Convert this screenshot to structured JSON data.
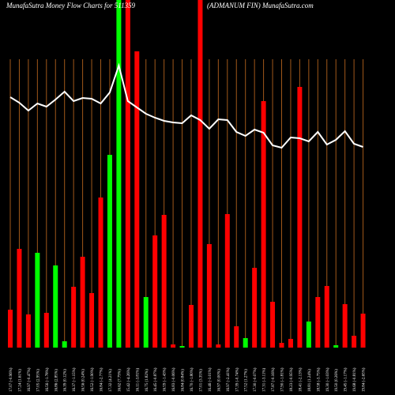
{
  "chart_data": {
    "type": "bar",
    "title": "MunafaSutra  Money Flow  Charts for 511359",
    "subtitle": "(ADMANUM FIN) MunafaSutra.com",
    "categories": [
      "17.07 (-0.96%)",
      "17.24 (1.61%)",
      "16.97 (-0.47%)",
      "17.05 (2.95%)",
      "16.56 (-1.78%)",
      "16.86 (2.85%)",
      "16.39 (0.12%)",
      "16.37 (-1.15%)",
      "16.56 (0.24%)",
      "16.52 (-1.90%)",
      "16.84 (-2.77%)",
      "17.32 (4.21%)",
      "16.62 (7.79%)",
      "15.42 (-4.26%)",
      "16.11 (-3.81%)",
      "16.75 (1.82%)",
      "16.45 (-0.87%)",
      "16.59 (-1.43%)",
      "16.83 (-0.06%)",
      "16.84 (0.84%)",
      "16.70 (-1.80%)",
      "17.01 (3.35%)",
      "16.46 (-3.01%)",
      "16.97 (0.00%)",
      "16.97 (-2.41%)",
      "17.39 (-0.74%)",
      "17.52 (1.27%)",
      "17.30 (-0.07%)",
      "17.31 (-3.11%)",
      "17.87 (-0.16%)",
      "17.90 (-1.81%)",
      "18.23 (-0.95%)",
      "18.41 (-2.13%)",
      "18.81 (1.24%)",
      "18.58 (-3.75%)",
      "19.30 (-1.03%)",
      "19.50 (0.26%)",
      "19.45 (-1.17%)",
      "19.68 (-0.81%)",
      "19.84 (-2.65%)"
    ],
    "series": [
      {
        "name": "Money Flow",
        "colors": [
          "#ff0000",
          "#ff0000",
          "#ff0000",
          "#00ff00",
          "#ff0000",
          "#00ff00",
          "#00ff00",
          "#ff0000",
          "#ff0000",
          "#ff0000",
          "#ff0000",
          "#00ff00",
          "#00ff00",
          "#ff0000",
          "#ff0000",
          "#00ff00",
          "#ff0000",
          "#ff0000",
          "#ff0000",
          "#00ff00",
          "#ff0000",
          "#ff0000",
          "#ff0000",
          "#ff0000",
          "#ff0000",
          "#ff0000",
          "#00ff00",
          "#ff0000",
          "#ff0000",
          "#ff0000",
          "#ff0000",
          "#ff0000",
          "#ff0000",
          "#00ff00",
          "#ff0000",
          "#ff0000",
          "#00ff00",
          "#ff0000",
          "#ff0000",
          "#ff0000"
        ],
        "values": [
          48,
          125,
          42,
          120,
          44,
          104,
          8,
          77,
          115,
          69,
          190,
          244,
          460,
          460,
          375,
          64,
          142,
          168,
          4,
          2,
          54,
          460,
          131,
          4,
          169,
          27,
          12,
          101,
          312,
          58,
          6,
          11,
          330,
          33,
          64,
          78,
          3,
          55,
          15,
          43
        ]
      },
      {
        "name": "Price",
        "color": "#ffffff",
        "values": [
          317,
          310,
          300,
          309,
          305,
          314,
          324,
          312,
          316,
          315,
          309,
          323,
          357,
          312,
          304,
          296,
          291,
          287,
          285,
          284,
          294,
          288,
          277,
          289,
          288,
          273,
          268,
          276,
          272,
          256,
          253,
          266,
          265,
          261,
          273,
          257,
          263,
          274,
          258,
          254
        ]
      }
    ],
    "ylim": [
      0,
      440
    ]
  }
}
